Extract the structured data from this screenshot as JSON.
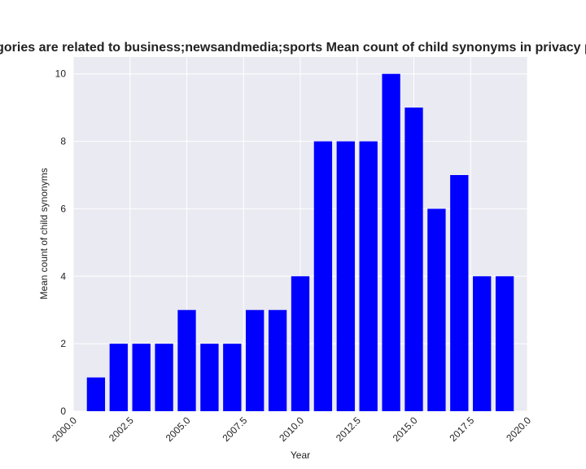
{
  "chart_data": {
    "type": "bar",
    "title": "Categories are related to business;newsandmedia;sports Mean count of child synonyms in privacy policies",
    "xlabel": "Year",
    "ylabel": "Mean count of child synonyms",
    "x": [
      2001,
      2002,
      2003,
      2004,
      2005,
      2006,
      2007,
      2008,
      2009,
      2010,
      2011,
      2012,
      2013,
      2014,
      2015,
      2016,
      2017,
      2018,
      2019
    ],
    "values": [
      1,
      2,
      2,
      2,
      3,
      2,
      2,
      3,
      3,
      4,
      8,
      8,
      8,
      10,
      9,
      6,
      7,
      4,
      4
    ],
    "xlim": [
      2000,
      2020
    ],
    "ylim": [
      0,
      10.5
    ],
    "xticks": [
      "2000.0",
      "2002.5",
      "2005.0",
      "2007.5",
      "2010.0",
      "2012.5",
      "2015.0",
      "2017.5",
      "2020.0"
    ],
    "yticks": [
      "0",
      "2",
      "4",
      "6",
      "8",
      "10"
    ],
    "bar_color": "#0000ff",
    "background": "#eaeaf2",
    "grid": true
  }
}
